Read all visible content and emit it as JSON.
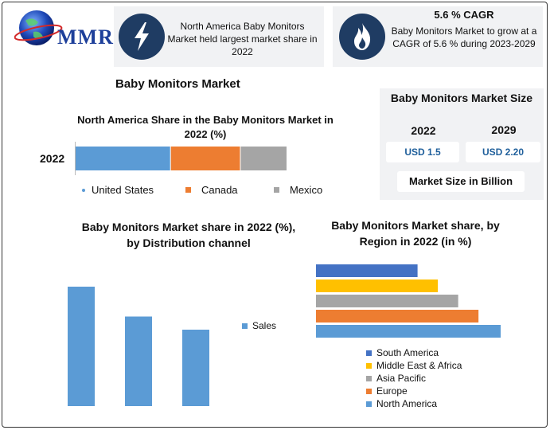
{
  "logo": {
    "text": "MMR"
  },
  "info_cards": [
    {
      "icon": "lightning-icon",
      "text": "North America Baby Monitors Market held largest market share in 2022"
    },
    {
      "icon": "flame-icon",
      "title": "5.6 % CAGR",
      "text": "Baby Monitors Market to grow at a CAGR of 5.6 % during 2023-2029"
    }
  ],
  "main_title": "Baby Monitors Market",
  "size_panel": {
    "title": "Baby Monitors Market Size",
    "years": [
      "2022",
      "2029"
    ],
    "values": [
      "USD 1.5",
      "USD 2.20"
    ],
    "footer": "Market Size in Billion"
  },
  "colors": {
    "blue": "#5b9bd5",
    "orange": "#ed7d31",
    "gray": "#a5a5a5",
    "yellow": "#ffc000",
    "navy": "#4472c4",
    "icon_bg": "#1f3c63"
  },
  "chart_data": [
    {
      "type": "bar",
      "orientation": "horizontal-stacked",
      "title": "North America Share in the Baby Monitors Market in 2022 (%)",
      "categories": [
        "2022"
      ],
      "series": [
        {
          "name": "United States",
          "values": [
            45
          ],
          "color": "#5b9bd5"
        },
        {
          "name": "Canada",
          "values": [
            33
          ],
          "color": "#ed7d31"
        },
        {
          "name": "Mexico",
          "values": [
            22
          ],
          "color": "#a5a5a5"
        }
      ],
      "legend": "bottom"
    },
    {
      "type": "bar",
      "title": "Baby Monitors Market share in 2022 (%), by Distribution channel",
      "categories": [
        "",
        "",
        ""
      ],
      "series": [
        {
          "name": "Sales",
          "values": [
            100,
            75,
            64
          ],
          "color": "#5b9bd5"
        }
      ],
      "legend": "right"
    },
    {
      "type": "bar",
      "orientation": "horizontal",
      "title": "Baby Monitors Market share, by Region in 2022 (in %)",
      "categories": [
        "South America",
        "Middle East & Africa",
        "Asia Pacific",
        "Europe",
        "North America"
      ],
      "values": [
        55,
        66,
        77,
        88,
        100
      ],
      "colors": [
        "#4472c4",
        "#ffc000",
        "#a5a5a5",
        "#ed7d31",
        "#5b9bd5"
      ],
      "legend": "bottom"
    }
  ]
}
